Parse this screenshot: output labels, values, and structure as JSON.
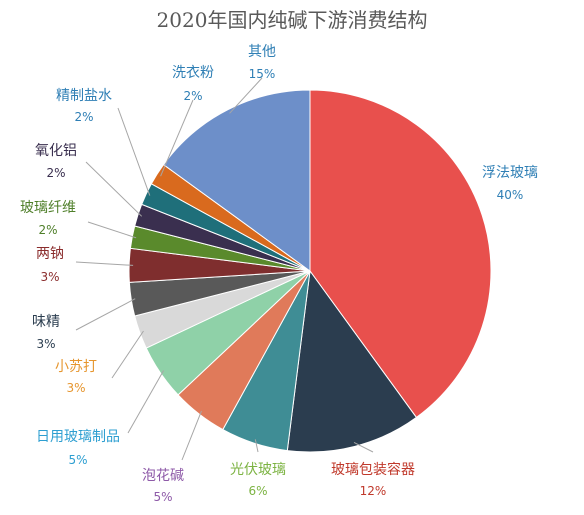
{
  "chart_data": {
    "type": "pie",
    "title": "2020年国内纯碱下游消费结构",
    "start_angle_deg": 0,
    "direction": "clockwise",
    "slices": [
      {
        "label": "浮法玻璃",
        "value": 40,
        "value_label": "40%",
        "color": "#e8504d",
        "text_color": "#2f7fb5"
      },
      {
        "label": "玻璃包装容器",
        "value": 12,
        "value_label": "12%",
        "color": "#2b3d4f",
        "text_color": "#c0392b"
      },
      {
        "label": "光伏玻璃",
        "value": 6,
        "value_label": "6%",
        "color": "#3f8d95",
        "text_color": "#7cb342"
      },
      {
        "label": "泡花碱",
        "value": 5,
        "value_label": "5%",
        "color": "#e07a5a",
        "text_color": "#8e5aa8"
      },
      {
        "label": "日用玻璃制品",
        "value": 5,
        "value_label": "5%",
        "color": "#8fd1a8",
        "text_color": "#2e9fd1"
      },
      {
        "label": "小苏打",
        "value": 3,
        "value_label": "3%",
        "color": "#d9d9d9",
        "text_color": "#e6962f"
      },
      {
        "label": "味精",
        "value": 3,
        "value_label": "3%",
        "color": "#595959",
        "text_color": "#2c3e50"
      },
      {
        "label": "两钠",
        "value": 3,
        "value_label": "3%",
        "color": "#7f2e2e",
        "text_color": "#8b2d2d"
      },
      {
        "label": "玻璃纤维",
        "value": 2,
        "value_label": "2%",
        "color": "#5a8a2c",
        "text_color": "#4f7f2a"
      },
      {
        "label": "氧化铝",
        "value": 2,
        "value_label": "2%",
        "color": "#3a2f4f",
        "text_color": "#3a2f4f"
      },
      {
        "label": "精制盐水",
        "value": 2,
        "value_label": "2%",
        "color": "#1f6f7a",
        "text_color": "#2f7fb5"
      },
      {
        "label": "洗衣粉",
        "value": 2,
        "value_label": "2%",
        "color": "#d96a1e",
        "text_color": "#2f7fb5"
      },
      {
        "label": "其他",
        "value": 15,
        "value_label": "15%",
        "color": "#6d8fc9",
        "text_color": "#2f7fb5"
      }
    ]
  }
}
